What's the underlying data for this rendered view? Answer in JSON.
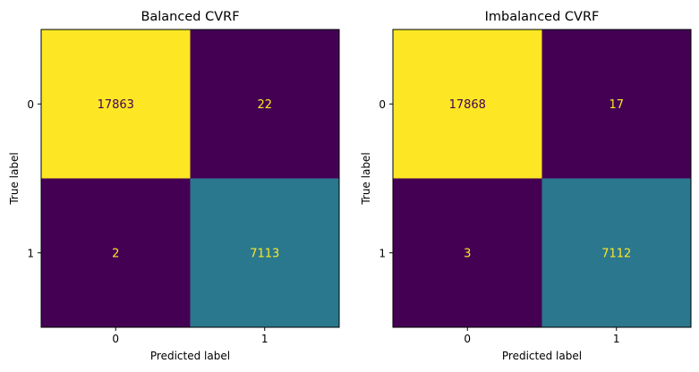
{
  "chart_data": [
    {
      "type": "heatmap",
      "title": "Balanced CVRF",
      "xlabel": "Predicted label",
      "ylabel": "True label",
      "x_ticks": [
        "0",
        "1"
      ],
      "y_ticks": [
        "0",
        "1"
      ],
      "matrix": [
        [
          17863,
          22
        ],
        [
          2,
          7113
        ]
      ],
      "cell_labels": [
        [
          "17863",
          "22"
        ],
        [
          "2",
          "7113"
        ]
      ],
      "colormap": "viridis",
      "colorbar": false,
      "grid": false
    },
    {
      "type": "heatmap",
      "title": "Imbalanced CVRF",
      "xlabel": "Predicted label",
      "ylabel": "True label",
      "x_ticks": [
        "0",
        "1"
      ],
      "y_ticks": [
        "0",
        "1"
      ],
      "matrix": [
        [
          17868,
          17
        ],
        [
          3,
          7112
        ]
      ],
      "cell_labels": [
        [
          "17868",
          "17"
        ],
        [
          "3",
          "7112"
        ]
      ],
      "colormap": "viridis",
      "colorbar": false,
      "grid": false
    }
  ],
  "colors": {
    "viridis_low": "#440154",
    "viridis_mid": "#2e778d",
    "viridis_high": "#fde725",
    "text_on_dark": "#fde725",
    "text_on_light": "#440154"
  }
}
